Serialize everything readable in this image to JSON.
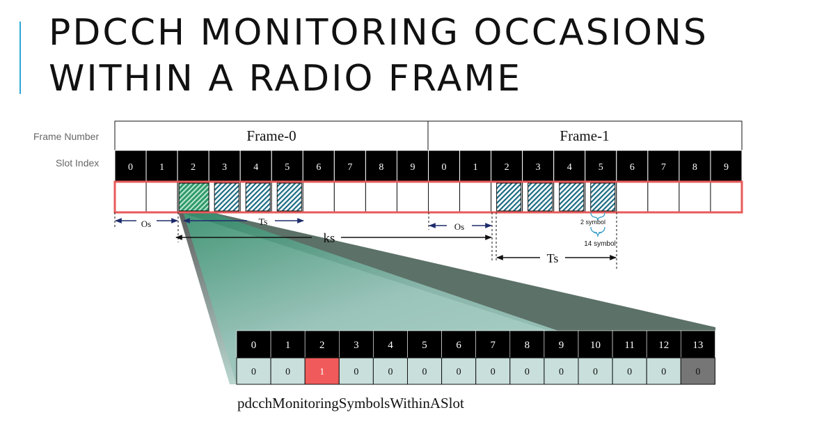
{
  "page": {
    "title": "PDCCH MONITORING OCCASIONS WITHIN A RADIO FRAME",
    "frame_number_label": "Frame Number",
    "slot_index_label": "Slot Index"
  },
  "frames": [
    {
      "label": "Frame-0",
      "slots": [
        "0",
        "1",
        "2",
        "3",
        "4",
        "5",
        "6",
        "7",
        "8",
        "9"
      ]
    },
    {
      "label": "Frame-1",
      "slots": [
        "0",
        "1",
        "2",
        "3",
        "4",
        "5",
        "6",
        "7",
        "8",
        "9"
      ]
    }
  ],
  "monitoring": {
    "frame0_highlight_slot": "2",
    "frame0_hatched_slots": [
      "3",
      "4",
      "5"
    ],
    "frame1_hatched_slots": [
      "2",
      "3",
      "4",
      "5"
    ]
  },
  "annotations": {
    "os": "Os",
    "ts": "Ts",
    "ks": "ks",
    "two_symbol": "2 symbol",
    "fourteen_symbol": "14 symbol"
  },
  "symbol_table": {
    "caption": "pdcchMonitoringSymbolsWithinASlot",
    "indices": [
      "0",
      "1",
      "2",
      "3",
      "4",
      "5",
      "6",
      "7",
      "8",
      "9",
      "10",
      "11",
      "12",
      "13"
    ],
    "bits": [
      "0",
      "0",
      "1",
      "0",
      "0",
      "0",
      "0",
      "0",
      "0",
      "0",
      "0",
      "0",
      "0",
      "0"
    ],
    "monitored_index": 2
  },
  "colors": {
    "accent": "#2aa6d8",
    "occasion_border": "#e85a5a",
    "monitored_bit": "#f05a5a",
    "hatch": "#1a6a82",
    "highlight_green": "#2f9a6a"
  }
}
